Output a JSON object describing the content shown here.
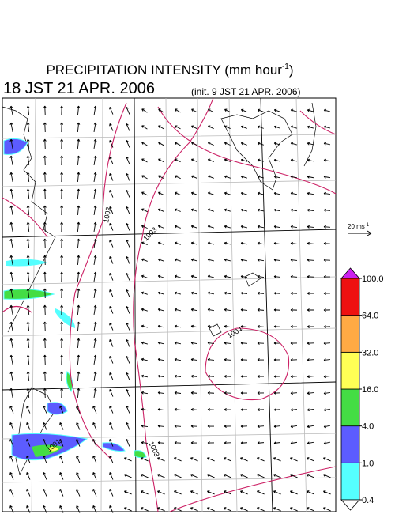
{
  "title": {
    "text": "PRECIPITATION INTENSITY (mm hour",
    "sup": "-1",
    "end": ")"
  },
  "valid_time": "18 JST 21 APR. 2006",
  "init_time": "(init. 9 JST 21 APR. 2006)",
  "isobar_labels": [
    "1002",
    "1003",
    "1004",
    "1001",
    "1003"
  ],
  "scale_label": {
    "text": "20 ms",
    "sup": "-1"
  },
  "colorbar": {
    "levels": [
      {
        "value": 0.4,
        "label": "0.4"
      },
      {
        "value": 1,
        "label": "1.0"
      },
      {
        "value": 4,
        "label": "4.0"
      },
      {
        "value": 16,
        "label": "16.0"
      },
      {
        "value": 32,
        "label": "32.0"
      },
      {
        "value": 64,
        "label": "64.0"
      },
      {
        "value": 100,
        "label": "100.0"
      }
    ],
    "colors": [
      "#55ffff",
      "#5c5cff",
      "#44dd44",
      "#ffff55",
      "#ffaa44",
      "#ee1111"
    ],
    "under_color": "#ffffff",
    "over_color": "#cc22ee"
  }
}
